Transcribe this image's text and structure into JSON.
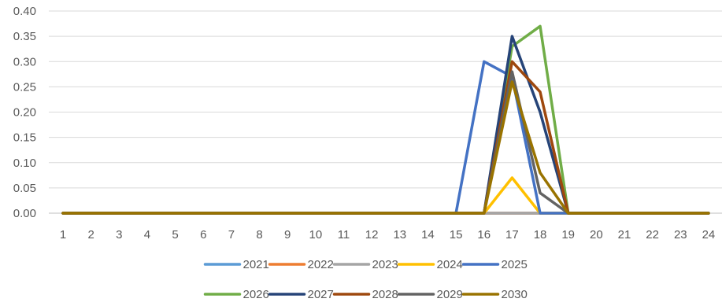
{
  "chart_data": {
    "type": "line",
    "title": "",
    "xlabel": "",
    "ylabel": "",
    "x": [
      1,
      2,
      3,
      4,
      5,
      6,
      7,
      8,
      9,
      10,
      11,
      12,
      13,
      14,
      15,
      16,
      17,
      18,
      19,
      20,
      21,
      22,
      23,
      24
    ],
    "ylim": [
      0,
      0.4
    ],
    "y_ticks": [
      "0.00",
      "0.05",
      "0.10",
      "0.15",
      "0.20",
      "0.25",
      "0.30",
      "0.35",
      "0.40"
    ],
    "grid": true,
    "legend_position": "bottom",
    "series": [
      {
        "name": "2021",
        "color": "#5B9BD5",
        "values": [
          0,
          0,
          0,
          0,
          0,
          0,
          0,
          0,
          0,
          0,
          0,
          0,
          0,
          0,
          0,
          0,
          0,
          0,
          0,
          0,
          0,
          0,
          0,
          0
        ]
      },
      {
        "name": "2022",
        "color": "#ED7D31",
        "values": [
          0,
          0,
          0,
          0,
          0,
          0,
          0,
          0,
          0,
          0,
          0,
          0,
          0,
          0,
          0,
          0,
          0,
          0,
          0,
          0,
          0,
          0,
          0,
          0
        ]
      },
      {
        "name": "2023",
        "color": "#A5A5A5",
        "values": [
          0,
          0,
          0,
          0,
          0,
          0,
          0,
          0,
          0,
          0,
          0,
          0,
          0,
          0,
          0,
          0,
          0,
          0,
          0,
          0,
          0,
          0,
          0,
          0
        ]
      },
      {
        "name": "2024",
        "color": "#FFC000",
        "values": [
          0,
          0,
          0,
          0,
          0,
          0,
          0,
          0,
          0,
          0,
          0,
          0,
          0,
          0,
          0,
          0,
          0.07,
          0,
          0,
          0,
          0,
          0,
          0,
          0
        ]
      },
      {
        "name": "2025",
        "color": "#4472C4",
        "values": [
          0,
          0,
          0,
          0,
          0,
          0,
          0,
          0,
          0,
          0,
          0,
          0,
          0,
          0,
          0,
          0.3,
          0.27,
          0,
          0,
          0,
          0,
          0,
          0,
          0
        ]
      },
      {
        "name": "2026",
        "color": "#70AD47",
        "values": [
          0,
          0,
          0,
          0,
          0,
          0,
          0,
          0,
          0,
          0,
          0,
          0,
          0,
          0,
          0,
          0,
          0.33,
          0.37,
          0,
          0,
          0,
          0,
          0,
          0
        ]
      },
      {
        "name": "2027",
        "color": "#264478",
        "values": [
          0,
          0,
          0,
          0,
          0,
          0,
          0,
          0,
          0,
          0,
          0,
          0,
          0,
          0,
          0,
          0,
          0.35,
          0.2,
          0,
          0,
          0,
          0,
          0,
          0
        ]
      },
      {
        "name": "2028",
        "color": "#9E480E",
        "values": [
          0,
          0,
          0,
          0,
          0,
          0,
          0,
          0,
          0,
          0,
          0,
          0,
          0,
          0,
          0,
          0,
          0.3,
          0.24,
          0,
          0,
          0,
          0,
          0,
          0
        ]
      },
      {
        "name": "2029",
        "color": "#636363",
        "values": [
          0,
          0,
          0,
          0,
          0,
          0,
          0,
          0,
          0,
          0,
          0,
          0,
          0,
          0,
          0,
          0,
          0.28,
          0.04,
          0,
          0,
          0,
          0,
          0,
          0
        ]
      },
      {
        "name": "2030",
        "color": "#997300",
        "values": [
          0,
          0,
          0,
          0,
          0,
          0,
          0,
          0,
          0,
          0,
          0,
          0,
          0,
          0,
          0,
          0,
          0.26,
          0.08,
          0,
          0,
          0,
          0,
          0,
          0
        ]
      }
    ]
  }
}
